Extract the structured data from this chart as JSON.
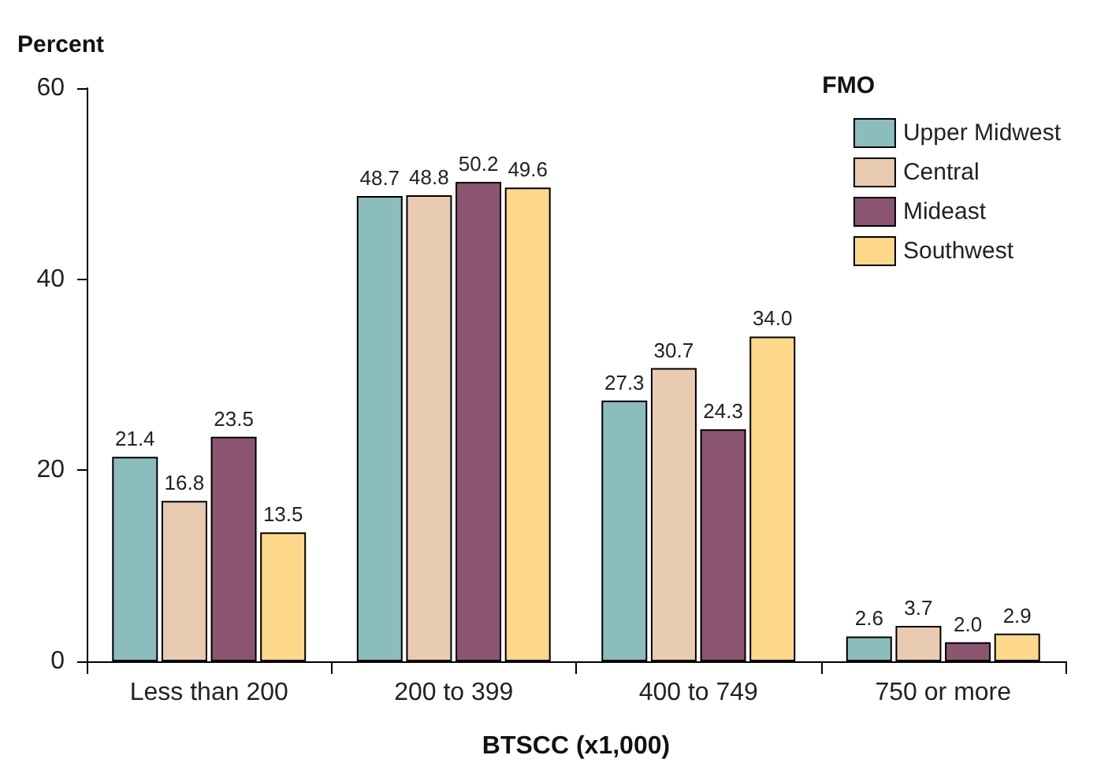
{
  "chart_data": {
    "type": "bar",
    "xlabel": "BTSCC (x1,000)",
    "ylabel": "Percent",
    "legend_title": "FMO",
    "categories": [
      "Less than 200",
      "200 to 399",
      "400 to 749",
      "750 or more"
    ],
    "series": [
      {
        "name": "Upper Midwest",
        "color": "#8cbdbd",
        "values": [
          21.4,
          48.7,
          27.3,
          2.6
        ],
        "value_labels": [
          "21.4",
          "48.7",
          "27.3",
          "2.6"
        ]
      },
      {
        "name": "Central",
        "color": "#e8cbb0",
        "values": [
          16.8,
          48.8,
          30.7,
          3.7
        ],
        "value_labels": [
          "16.8",
          "48.8",
          "30.7",
          "3.7"
        ]
      },
      {
        "name": "Mideast",
        "color": "#8b5470",
        "values": [
          23.5,
          50.2,
          24.3,
          2.0
        ],
        "value_labels": [
          "23.5",
          "50.2",
          "24.3",
          "2.0"
        ]
      },
      {
        "name": "Southwest",
        "color": "#fdd88a",
        "values": [
          13.5,
          49.6,
          34.0,
          2.9
        ],
        "value_labels": [
          "13.5",
          "49.6",
          "34.0",
          "2.9"
        ]
      }
    ],
    "ylim": [
      0,
      60
    ],
    "yticks": [
      0,
      20,
      40,
      60
    ],
    "grid": false,
    "legend": "top right"
  }
}
